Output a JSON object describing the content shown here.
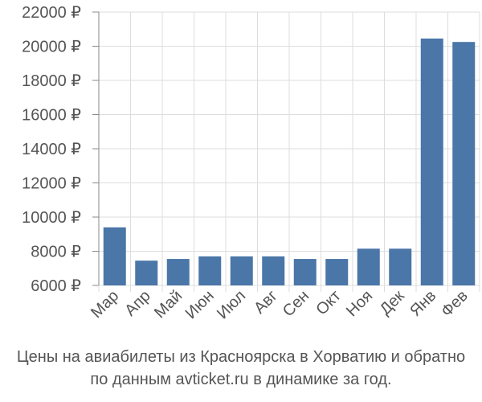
{
  "chart_data": {
    "type": "bar",
    "categories": [
      "Мар",
      "Апр",
      "Май",
      "Июн",
      "Июл",
      "Авг",
      "Сен",
      "Окт",
      "Ноя",
      "Дек",
      "Янв",
      "Фев"
    ],
    "values": [
      9400,
      7450,
      7550,
      7700,
      7700,
      7700,
      7550,
      7550,
      8150,
      8150,
      20450,
      20250
    ],
    "ylim": [
      6000,
      22000
    ],
    "yticks": [
      6000,
      8000,
      10000,
      12000,
      14000,
      16000,
      18000,
      20000,
      22000
    ],
    "y_tick_suffix": " ₽",
    "grid": true,
    "bar_color": "#4a76a8",
    "grid_color": "#dddddd",
    "axis_color": "#888888"
  },
  "caption": {
    "line1": "Цены на авиабилеты из Красноярска в Хорватию и обратно",
    "line2": "по данным avticket.ru в динамике за год."
  }
}
